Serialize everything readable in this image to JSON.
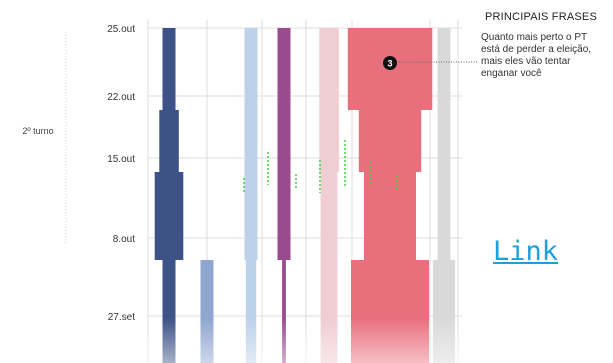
{
  "chart_data": {
    "type": "area",
    "y_ticks": [
      "25.out",
      "22.out",
      "15.out",
      "8.out",
      "27.set"
    ],
    "phase_label": "2º turno",
    "grid": true,
    "series": [
      {
        "color": "#3d5286",
        "widths": [
          1.0,
          1.0,
          1.5,
          2.2,
          2.2,
          1.0,
          1.0
        ]
      },
      {
        "color": "#8fa6d0",
        "widths": [
          0,
          0,
          0,
          0,
          0,
          1.0,
          1.0
        ]
      },
      {
        "color": "#bcd2ea",
        "widths": [
          1.0,
          1.0,
          1.0,
          1.0,
          1.0,
          0.8,
          0.8
        ]
      },
      {
        "color": "#9a4a8f",
        "widths": [
          1.0,
          1.0,
          1.0,
          1.0,
          1.0,
          0.3,
          0.3
        ]
      },
      {
        "color": "#f0ccd3",
        "widths": [
          1.5,
          1.5,
          1.5,
          1.3,
          1.3,
          1.3,
          1.3
        ]
      },
      {
        "color": "#e8707d",
        "widths": [
          6.5,
          6.5,
          4.8,
          4.0,
          4.0,
          6.0,
          6.0
        ]
      },
      {
        "color": "#d9d9d9",
        "widths": [
          1.0,
          1.0,
          1.0,
          1.0,
          1.0,
          1.7,
          1.7
        ]
      }
    ],
    "annotations": [
      {
        "marker": "3",
        "title": "PRINCIPAIS FRASES",
        "text": "Quanto mais perto o PT está de perder a eleição, mais eles vão tentar enganar você"
      }
    ]
  },
  "link": {
    "label": "Link"
  },
  "colors": {
    "grid": "#dddddd",
    "highlight": "#3fd13f",
    "marker": "#111111",
    "link": "#1ea0d8"
  }
}
